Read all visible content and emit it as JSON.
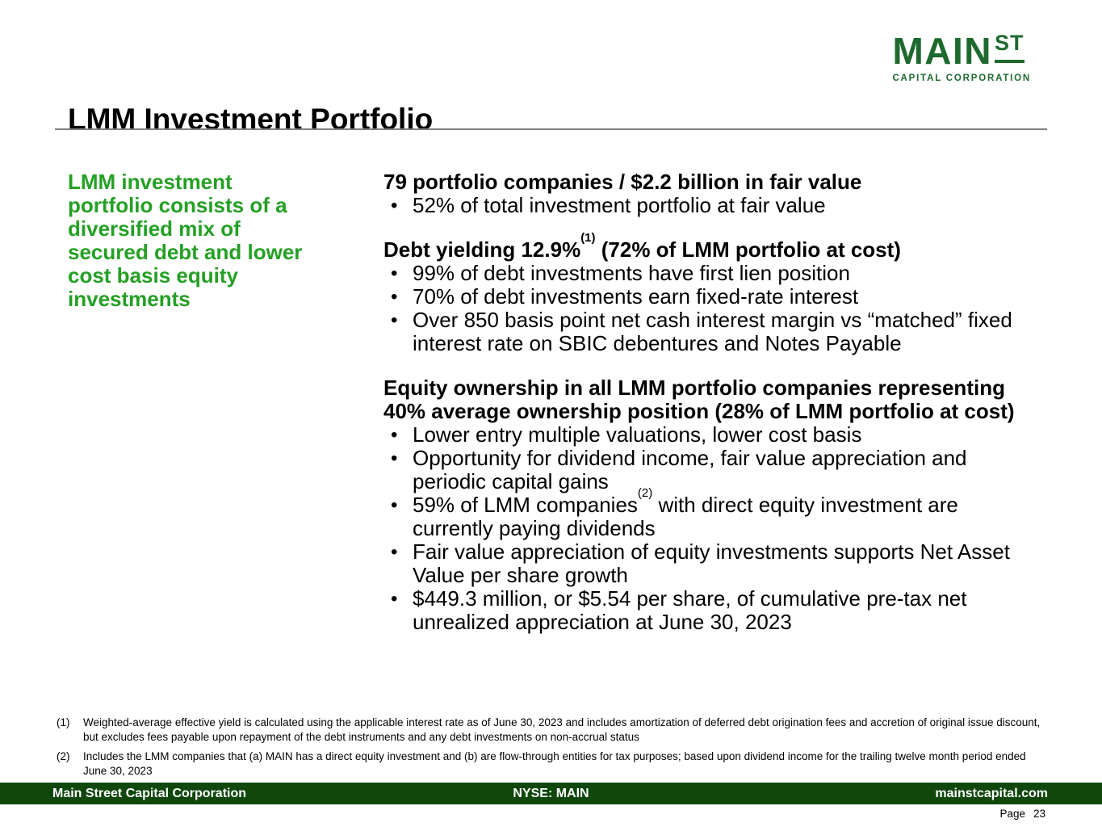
{
  "colors": {
    "accent_green": "#24a024",
    "logo_green": "#1e692e",
    "footer_green": "#10470d",
    "rule_gray": "#808080"
  },
  "logo": {
    "main": "MAIN",
    "st": "ST",
    "subtitle": "CAPITAL CORPORATION"
  },
  "slide": {
    "title": "LMM Investment Portfolio"
  },
  "sidebar": {
    "callout": "LMM investment portfolio consists of a diversified mix of secured debt and lower cost basis equity investments"
  },
  "content": {
    "sections": [
      {
        "heading": [
          {
            "t": "79 portfolio companies / $2.2 billion in fair value"
          }
        ],
        "bullets": [
          [
            {
              "t": "52% of total investment portfolio at fair value"
            }
          ]
        ]
      },
      {
        "heading": [
          {
            "t": "Debt yielding 12.9%"
          },
          {
            "sup": "(1)"
          },
          {
            "t": " (72% of LMM portfolio at cost)"
          }
        ],
        "bullets": [
          [
            {
              "t": "99% of debt investments have first lien position"
            }
          ],
          [
            {
              "t": "70% of debt investments earn fixed-rate interest"
            }
          ],
          [
            {
              "t": "Over 850 basis point net cash interest margin vs “matched” fixed interest rate on SBIC debentures and Notes Payable"
            }
          ]
        ]
      },
      {
        "heading": [
          {
            "t": "Equity ownership in all LMM portfolio companies representing 40% average ownership position (28% of LMM portfolio at cost)"
          }
        ],
        "bullets": [
          [
            {
              "t": "Lower entry multiple valuations, lower cost basis"
            }
          ],
          [
            {
              "t": "Opportunity for dividend income, fair value appreciation and periodic capital gains"
            }
          ],
          [
            {
              "t": "59% of LMM companies"
            },
            {
              "sup": "(2)"
            },
            {
              "t": " with direct equity investment are currently paying dividends"
            }
          ],
          [
            {
              "t": "Fair value appreciation of equity investments supports Net Asset Value per share growth"
            }
          ],
          [
            {
              "t": "$449.3 million, or $5.54 per share, of cumulative pre-tax net unrealized appreciation at June 30, 2023"
            }
          ]
        ]
      }
    ]
  },
  "footnotes": [
    {
      "marker": "(1)",
      "text": "Weighted-average effective yield is calculated using the applicable interest rate as of June 30, 2023 and includes amortization of deferred debt origination fees and accretion of original issue discount, but excludes fees payable upon repayment of the debt instruments and any debt investments on non-accrual status"
    },
    {
      "marker": "(2)",
      "text": "Includes the LMM companies that (a) MAIN has a direct equity investment and (b) are flow-through entities for tax purposes; based upon dividend income for the trailing twelve month period ended June 30, 2023"
    }
  ],
  "footer": {
    "company": "Main Street Capital Corporation",
    "ticker": "NYSE: MAIN",
    "website": "mainstcapital.com"
  },
  "page": {
    "label": "Page",
    "number": "23"
  }
}
